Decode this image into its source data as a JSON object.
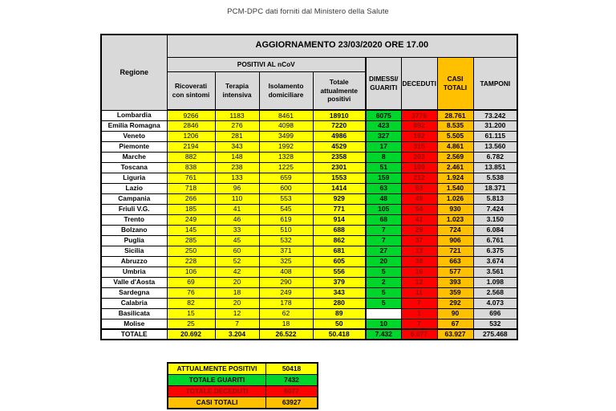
{
  "page_title": "PCM-DPC dati forniti dal Ministero della Salute",
  "colors": {
    "positivi_yellow": "#ffff00",
    "guariti_green": "#00d52c",
    "deceduti_red": "#fe0000",
    "casi_totali_orange": "#ffc000",
    "header_gray": "#d9d9d9",
    "deceduti_text": "#8f1408"
  },
  "main_table": {
    "update_header": "AGGIORNAMENTO 23/03/2020 ORE 17.00",
    "region_header": "Regione",
    "group_header": "POSITIVI AL nCoV",
    "sub_columns": [
      "Ricoverati con sintomi",
      "Terapia intensiva",
      "Isolamento domiciliare",
      "Totale attualmente positivi"
    ],
    "side_columns": [
      "DIMESSI/ GUARITI",
      "DECEDUTI",
      "CASI TOTALI",
      "TAMPONI"
    ],
    "rows": [
      {
        "region": "Lombardia",
        "values": [
          "9266",
          "1183",
          "8461",
          "18910",
          "6075",
          "3776",
          "28.761",
          "73.242"
        ]
      },
      {
        "region": "Emilia Romagna",
        "values": [
          "2846",
          "276",
          "4098",
          "7220",
          "423",
          "892",
          "8.535",
          "31.200"
        ]
      },
      {
        "region": "Veneto",
        "values": [
          "1206",
          "281",
          "3499",
          "4986",
          "327",
          "192",
          "5.505",
          "61.115"
        ]
      },
      {
        "region": "Piemonte",
        "values": [
          "2194",
          "343",
          "1992",
          "4529",
          "17",
          "315",
          "4.861",
          "13.560"
        ]
      },
      {
        "region": "Marche",
        "values": [
          "882",
          "148",
          "1328",
          "2358",
          "8",
          "203",
          "2.569",
          "6.782"
        ]
      },
      {
        "region": "Toscana",
        "values": [
          "838",
          "238",
          "1225",
          "2301",
          "51",
          "109",
          "2.461",
          "13.851"
        ]
      },
      {
        "region": "Liguria",
        "values": [
          "761",
          "133",
          "659",
          "1553",
          "159",
          "212",
          "1.924",
          "5.538"
        ]
      },
      {
        "region": "Lazio",
        "values": [
          "718",
          "96",
          "600",
          "1414",
          "63",
          "63",
          "1.540",
          "18.371"
        ]
      },
      {
        "region": "Campania",
        "values": [
          "266",
          "110",
          "553",
          "929",
          "48",
          "49",
          "1.026",
          "5.813"
        ]
      },
      {
        "region": "Friuli V.G.",
        "values": [
          "185",
          "41",
          "545",
          "771",
          "105",
          "54",
          "930",
          "7.424"
        ]
      },
      {
        "region": "Trento",
        "values": [
          "249",
          "46",
          "619",
          "914",
          "68",
          "41",
          "1.023",
          "3.150"
        ]
      },
      {
        "region": "Bolzano",
        "values": [
          "145",
          "33",
          "510",
          "688",
          "7",
          "29",
          "724",
          "6.084"
        ]
      },
      {
        "region": "Puglia",
        "values": [
          "285",
          "45",
          "532",
          "862",
          "7",
          "37",
          "906",
          "6.761"
        ]
      },
      {
        "region": "Sicilia",
        "values": [
          "250",
          "60",
          "371",
          "681",
          "27",
          "13",
          "721",
          "6.375"
        ]
      },
      {
        "region": "Abruzzo",
        "values": [
          "228",
          "52",
          "325",
          "605",
          "20",
          "38",
          "663",
          "3.674"
        ]
      },
      {
        "region": "Umbria",
        "values": [
          "106",
          "42",
          "408",
          "556",
          "5",
          "16",
          "577",
          "3.561"
        ]
      },
      {
        "region": "Valle d'Aosta",
        "values": [
          "69",
          "20",
          "290",
          "379",
          "2",
          "12",
          "393",
          "1.098"
        ]
      },
      {
        "region": "Sardegna",
        "values": [
          "76",
          "18",
          "249",
          "343",
          "5",
          "11",
          "359",
          "2.568"
        ]
      },
      {
        "region": "Calabria",
        "values": [
          "82",
          "20",
          "178",
          "280",
          "5",
          "7",
          "292",
          "4.073"
        ]
      },
      {
        "region": "Basilicata",
        "values": [
          "15",
          "12",
          "62",
          "89",
          "",
          "1",
          "90",
          "696"
        ]
      },
      {
        "region": "Molise",
        "values": [
          "25",
          "7",
          "18",
          "50",
          "10",
          "7",
          "67",
          "532"
        ]
      },
      {
        "region": "TOTALE",
        "is_total": true,
        "values": [
          "20.692",
          "3.204",
          "26.522",
          "50.418",
          "7.432",
          "6.077",
          "63.927",
          "275.468"
        ]
      }
    ]
  },
  "summary_table": {
    "rows": [
      {
        "label": "ATTUALMENTE POSITIVI",
        "value": "50418",
        "style": "yellow"
      },
      {
        "label": "TOTALE GUARITI",
        "value": "7432",
        "style": "green"
      },
      {
        "label": "TOTALE DECEDUTI",
        "value": "6077",
        "style": "red"
      },
      {
        "label": "CASI TOTALI",
        "value": "63927",
        "style": "orange"
      }
    ]
  }
}
